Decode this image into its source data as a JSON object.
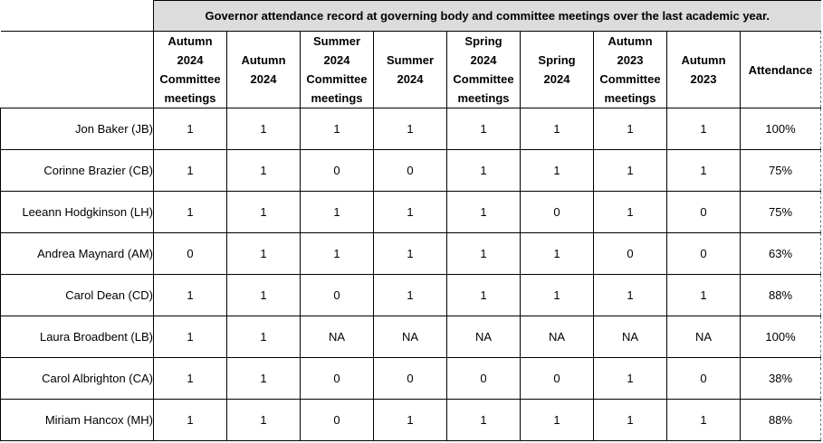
{
  "title": "Governor attendance record at governing body and committee meetings over the last academic year.",
  "columns": [
    [
      "Autumn",
      "2024",
      "Committee",
      "meetings"
    ],
    [
      "Autumn",
      "2024"
    ],
    [
      "Summer",
      "2024",
      "Committee",
      "meetings"
    ],
    [
      "Summer",
      "2024"
    ],
    [
      "Spring",
      "2024",
      "Committee",
      "meetings"
    ],
    [
      "Spring",
      "2024"
    ],
    [
      "Autumn",
      "2023",
      "Committee",
      "meetings"
    ],
    [
      "Autumn",
      "2023"
    ],
    [
      "Attendance"
    ]
  ],
  "rows": [
    {
      "name": "Jon Baker (JB)",
      "values": [
        "1",
        "1",
        "1",
        "1",
        "1",
        "1",
        "1",
        "1"
      ],
      "attendance": "100%"
    },
    {
      "name": "Corinne Brazier (CB)",
      "values": [
        "1",
        "1",
        "0",
        "0",
        "1",
        "1",
        "1",
        "1"
      ],
      "attendance": "75%"
    },
    {
      "name": "Leeann Hodgkinson (LH)",
      "values": [
        "1",
        "1",
        "1",
        "1",
        "1",
        "0",
        "1",
        "0"
      ],
      "attendance": "75%"
    },
    {
      "name": "Andrea Maynard (AM)",
      "values": [
        "0",
        "1",
        "1",
        "1",
        "1",
        "1",
        "0",
        "0"
      ],
      "attendance": "63%"
    },
    {
      "name": "Carol Dean (CD)",
      "values": [
        "1",
        "1",
        "0",
        "1",
        "1",
        "1",
        "1",
        "1"
      ],
      "attendance": "88%"
    },
    {
      "name": "Laura Broadbent (LB)",
      "values": [
        "1",
        "1",
        "NA",
        "NA",
        "NA",
        "NA",
        "NA",
        "NA"
      ],
      "attendance": "100%"
    },
    {
      "name": "Carol Albrighton (CA)",
      "values": [
        "1",
        "1",
        "0",
        "0",
        "0",
        "0",
        "1",
        "0"
      ],
      "attendance": "38%"
    },
    {
      "name": "Miriam Hancox (MH)",
      "values": [
        "1",
        "1",
        "0",
        "1",
        "1",
        "1",
        "1",
        "1"
      ],
      "attendance": "88%"
    }
  ]
}
